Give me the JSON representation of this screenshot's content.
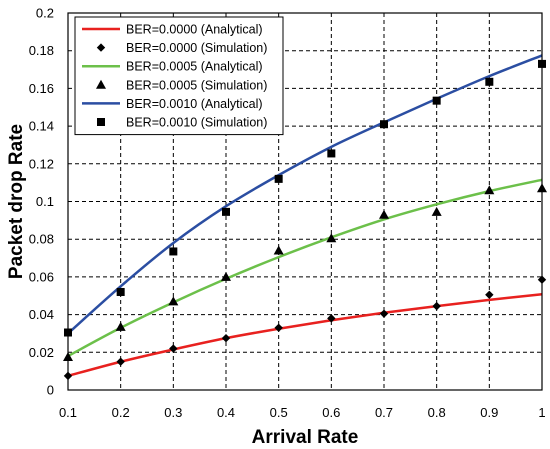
{
  "chart_data": {
    "type": "line",
    "xlabel": "Arrival Rate",
    "ylabel": "Packet drop Rate",
    "xlim": [
      0.1,
      1
    ],
    "ylim": [
      0,
      0.2
    ],
    "x_ticks": [
      "0.1",
      "0.2",
      "0.3",
      "0.4",
      "0.5",
      "0.6",
      "0.7",
      "0.8",
      "0.9",
      "1"
    ],
    "y_ticks": [
      "0",
      "0.02",
      "0.04",
      "0.06",
      "0.08",
      "0.1",
      "0.12",
      "0.14",
      "0.16",
      "0.18",
      "0.2"
    ],
    "grid": true,
    "legend_position": "top-left",
    "series": [
      {
        "name": "BER=0.0000 (Analytical)",
        "kind": "line",
        "color": "#e8211f",
        "x": [
          0.1,
          0.2,
          0.3,
          0.4,
          0.5,
          0.6,
          0.7,
          0.8,
          0.9,
          1.0
        ],
        "y": [
          0.0075,
          0.015,
          0.0215,
          0.0275,
          0.0325,
          0.037,
          0.041,
          0.0445,
          0.0478,
          0.0508
        ]
      },
      {
        "name": "BER=0.0000 (Simulation)",
        "kind": "marker",
        "marker": "diamond",
        "color": "#000000",
        "x": [
          0.1,
          0.2,
          0.3,
          0.4,
          0.5,
          0.6,
          0.7,
          0.8,
          0.9,
          1.0
        ],
        "y": [
          0.0075,
          0.015,
          0.022,
          0.0275,
          0.033,
          0.038,
          0.0405,
          0.0445,
          0.0505,
          0.0585
        ]
      },
      {
        "name": "BER=0.0005 (Analytical)",
        "kind": "line",
        "color": "#6cc04a",
        "x": [
          0.1,
          0.2,
          0.3,
          0.4,
          0.5,
          0.6,
          0.7,
          0.8,
          0.9,
          1.0
        ],
        "y": [
          0.018,
          0.033,
          0.0465,
          0.059,
          0.0705,
          0.081,
          0.0905,
          0.0985,
          0.1055,
          0.1115
        ]
      },
      {
        "name": "BER=0.0005 (Simulation)",
        "kind": "marker",
        "marker": "triangle",
        "color": "#000000",
        "x": [
          0.1,
          0.2,
          0.3,
          0.4,
          0.5,
          0.6,
          0.7,
          0.8,
          0.9,
          1.0
        ],
        "y": [
          0.0175,
          0.0335,
          0.047,
          0.06,
          0.074,
          0.0805,
          0.093,
          0.0945,
          0.106,
          0.107
        ]
      },
      {
        "name": "BER=0.0010 (Analytical)",
        "kind": "line",
        "color": "#2b4ea2",
        "x": [
          0.1,
          0.2,
          0.3,
          0.4,
          0.5,
          0.6,
          0.7,
          0.8,
          0.9,
          1.0
        ],
        "y": [
          0.03,
          0.055,
          0.078,
          0.0975,
          0.114,
          0.129,
          0.142,
          0.1545,
          0.1665,
          0.1775
        ]
      },
      {
        "name": "BER=0.0010 (Simulation)",
        "kind": "marker",
        "marker": "square",
        "color": "#000000",
        "x": [
          0.1,
          0.2,
          0.3,
          0.4,
          0.5,
          0.6,
          0.7,
          0.8,
          0.9,
          1.0
        ],
        "y": [
          0.0305,
          0.052,
          0.0735,
          0.0945,
          0.112,
          0.1255,
          0.141,
          0.1535,
          0.1635,
          0.173
        ]
      }
    ]
  }
}
